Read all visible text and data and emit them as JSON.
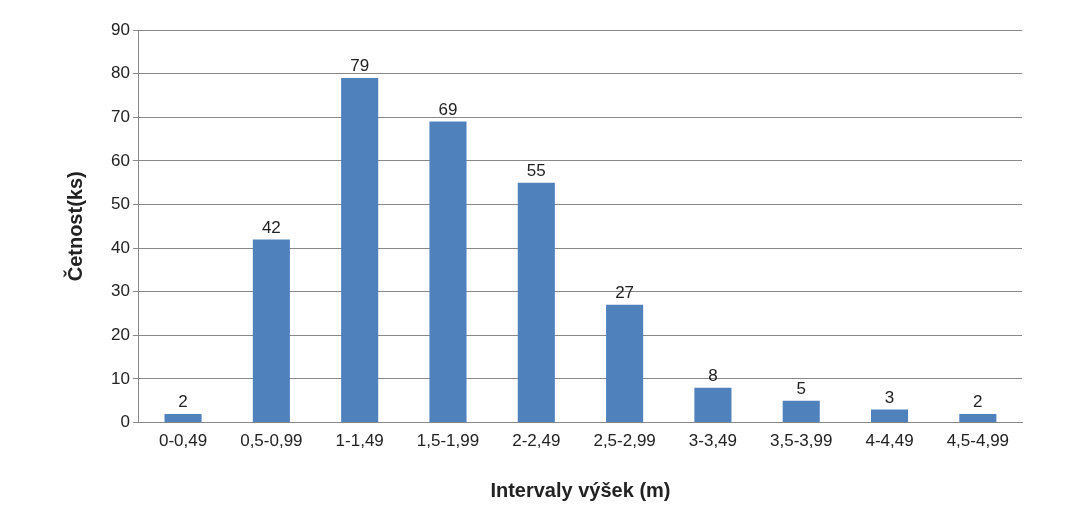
{
  "chart_data": {
    "type": "bar",
    "xlabel": "Intervaly výšek (m)",
    "ylabel": "Četnost(ks)",
    "categories": [
      "0-0,49",
      "0,5-0,99",
      "1-1,49",
      "1,5-1,99",
      "2-2,49",
      "2,5-2,99",
      "3-3,49",
      "3,5-3,99",
      "4-4,49",
      "4,5-4,99"
    ],
    "values": [
      2,
      42,
      79,
      69,
      55,
      27,
      8,
      5,
      3,
      2
    ],
    "color": "#4f81bd",
    "ylim": [
      0,
      90
    ],
    "yticks": [
      0,
      10,
      20,
      30,
      40,
      50,
      60,
      70,
      80,
      90
    ],
    "grid": "y",
    "data_labels": true,
    "legend": false
  }
}
